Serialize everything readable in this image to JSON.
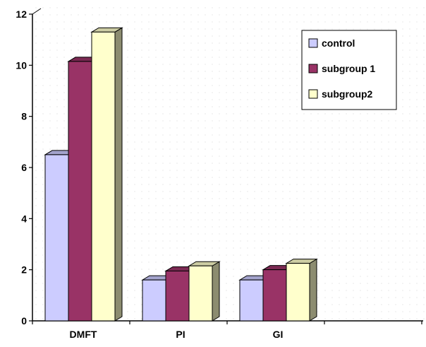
{
  "chart_data": {
    "type": "bar",
    "categories": [
      "DMFT",
      "PI",
      "GI"
    ],
    "series": [
      {
        "name": "control",
        "values": [
          6.5,
          1.6,
          1.6
        ],
        "color": "#ccccff"
      },
      {
        "name": "subgroup 1",
        "values": [
          10.15,
          1.95,
          2.0
        ],
        "color": "#993366"
      },
      {
        "name": "subgroup2",
        "values": [
          11.3,
          2.15,
          2.25
        ],
        "color": "#ffffcc"
      }
    ],
    "ylim": [
      0,
      12
    ],
    "yticks": [
      "0",
      "2",
      "4",
      "6",
      "8",
      "10",
      "12"
    ],
    "legend_position": "top-right",
    "grid": false,
    "bars_3d": true
  }
}
